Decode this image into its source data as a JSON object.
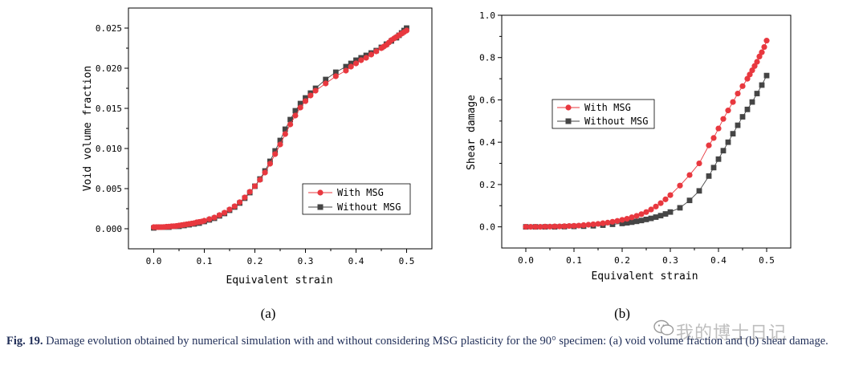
{
  "caption": {
    "label": "Fig. 19.",
    "text": " Damage evolution obtained by numerical simulation with and without considering MSG plasticity for the 90° specimen: (a) void volume fraction and (b) shear damage."
  },
  "watermark": {
    "text": "我的博士日记",
    "icon": "wechat-icon"
  },
  "colors": {
    "with_msg": "#e8383f",
    "without_msg": "#454545",
    "axis": "#000000"
  },
  "chart_data": [
    {
      "type": "line",
      "panel_label": "(a)",
      "xlabel": "Equivalent strain",
      "ylabel": "Void volume fraction",
      "xlim": [
        -0.05,
        0.55
      ],
      "ylim": [
        -0.0025,
        0.0275
      ],
      "xticks": [
        "0.0",
        "0.1",
        "0.2",
        "0.3",
        "0.4",
        "0.5"
      ],
      "yticks": [
        "0.000",
        "0.005",
        "0.010",
        "0.015",
        "0.020",
        "0.025"
      ],
      "legend": "center-right",
      "series": [
        {
          "name": "With MSG",
          "marker": "circle",
          "x": [
            0.0,
            0.005,
            0.01,
            0.015,
            0.02,
            0.025,
            0.03,
            0.035,
            0.04,
            0.045,
            0.05,
            0.055,
            0.06,
            0.065,
            0.07,
            0.075,
            0.08,
            0.085,
            0.09,
            0.095,
            0.1,
            0.11,
            0.12,
            0.13,
            0.14,
            0.15,
            0.16,
            0.17,
            0.18,
            0.19,
            0.2,
            0.21,
            0.22,
            0.23,
            0.24,
            0.25,
            0.26,
            0.27,
            0.28,
            0.29,
            0.3,
            0.31,
            0.32,
            0.34,
            0.36,
            0.38,
            0.39,
            0.4,
            0.41,
            0.42,
            0.43,
            0.44,
            0.45,
            0.455,
            0.46,
            0.465,
            0.47,
            0.475,
            0.48,
            0.485,
            0.49,
            0.495,
            0.5
          ],
          "y": [
            0.0002,
            0.0002,
            0.0002,
            0.0002,
            0.00022,
            0.00025,
            0.00027,
            0.0003,
            0.00032,
            0.00035,
            0.0004,
            0.00045,
            0.0005,
            0.00055,
            0.0006,
            0.00065,
            0.0007,
            0.0008,
            0.00085,
            0.0009,
            0.001,
            0.0012,
            0.0014,
            0.0017,
            0.002,
            0.0024,
            0.0028,
            0.0033,
            0.0039,
            0.0046,
            0.0053,
            0.0061,
            0.007,
            0.0081,
            0.0093,
            0.0105,
            0.0118,
            0.013,
            0.0141,
            0.0151,
            0.0159,
            0.0166,
            0.0172,
            0.0181,
            0.019,
            0.0197,
            0.0202,
            0.0206,
            0.021,
            0.0213,
            0.0217,
            0.0221,
            0.0225,
            0.0227,
            0.0229,
            0.0232,
            0.0235,
            0.0237,
            0.0239,
            0.0241,
            0.0243,
            0.0245,
            0.0247
          ]
        },
        {
          "name": "Without MSG",
          "marker": "square",
          "x": [
            0.0,
            0.01,
            0.02,
            0.03,
            0.04,
            0.05,
            0.06,
            0.07,
            0.08,
            0.09,
            0.1,
            0.11,
            0.12,
            0.13,
            0.14,
            0.15,
            0.16,
            0.17,
            0.18,
            0.19,
            0.2,
            0.21,
            0.22,
            0.23,
            0.24,
            0.25,
            0.26,
            0.27,
            0.28,
            0.29,
            0.3,
            0.31,
            0.32,
            0.34,
            0.36,
            0.38,
            0.39,
            0.4,
            0.41,
            0.42,
            0.43,
            0.44,
            0.45,
            0.46,
            0.47,
            0.48,
            0.485,
            0.49,
            0.495,
            0.5
          ],
          "y": [
            0.0001,
            0.0002,
            0.0002,
            0.0002,
            0.0003,
            0.0003,
            0.0004,
            0.0005,
            0.0006,
            0.0007,
            0.0009,
            0.0011,
            0.0013,
            0.0016,
            0.0019,
            0.0023,
            0.0027,
            0.0032,
            0.0038,
            0.0045,
            0.0053,
            0.0062,
            0.0072,
            0.0084,
            0.0097,
            0.011,
            0.0124,
            0.0136,
            0.0147,
            0.0156,
            0.0163,
            0.0169,
            0.0175,
            0.0186,
            0.0195,
            0.0202,
            0.0206,
            0.021,
            0.0213,
            0.0216,
            0.0219,
            0.0222,
            0.0226,
            0.023,
            0.0234,
            0.0238,
            0.0241,
            0.0244,
            0.0247,
            0.025
          ]
        }
      ]
    },
    {
      "type": "line",
      "panel_label": "(b)",
      "xlabel": "Equivalent strain",
      "ylabel": "Shear damage",
      "xlim": [
        -0.05,
        0.55
      ],
      "ylim": [
        -0.1,
        1.0
      ],
      "xticks": [
        "0.0",
        "0.1",
        "0.2",
        "0.3",
        "0.4",
        "0.5"
      ],
      "yticks": [
        "0.0",
        "0.2",
        "0.4",
        "0.6",
        "0.8",
        "1.0"
      ],
      "legend": "center-left",
      "series": [
        {
          "name": "With MSG",
          "marker": "circle",
          "x": [
            0.0,
            0.01,
            0.02,
            0.03,
            0.04,
            0.05,
            0.06,
            0.07,
            0.08,
            0.09,
            0.1,
            0.11,
            0.12,
            0.13,
            0.14,
            0.15,
            0.16,
            0.17,
            0.18,
            0.19,
            0.2,
            0.21,
            0.22,
            0.23,
            0.24,
            0.25,
            0.26,
            0.27,
            0.28,
            0.29,
            0.3,
            0.32,
            0.34,
            0.36,
            0.38,
            0.39,
            0.4,
            0.41,
            0.42,
            0.43,
            0.44,
            0.45,
            0.46,
            0.465,
            0.47,
            0.475,
            0.48,
            0.485,
            0.49,
            0.495,
            0.5
          ],
          "y": [
            0.0,
            0.0,
            0.0,
            0.0,
            0.001,
            0.001,
            0.002,
            0.002,
            0.003,
            0.004,
            0.005,
            0.006,
            0.008,
            0.01,
            0.012,
            0.014,
            0.017,
            0.02,
            0.024,
            0.028,
            0.033,
            0.038,
            0.045,
            0.052,
            0.06,
            0.07,
            0.082,
            0.096,
            0.112,
            0.13,
            0.15,
            0.195,
            0.245,
            0.3,
            0.385,
            0.42,
            0.465,
            0.51,
            0.55,
            0.59,
            0.63,
            0.665,
            0.7,
            0.72,
            0.74,
            0.76,
            0.78,
            0.805,
            0.825,
            0.85,
            0.88
          ]
        },
        {
          "name": "Without MSG",
          "marker": "square",
          "x": [
            0.0,
            0.02,
            0.04,
            0.06,
            0.08,
            0.1,
            0.12,
            0.14,
            0.16,
            0.18,
            0.2,
            0.21,
            0.22,
            0.23,
            0.24,
            0.25,
            0.26,
            0.27,
            0.28,
            0.29,
            0.3,
            0.32,
            0.34,
            0.36,
            0.38,
            0.39,
            0.4,
            0.41,
            0.42,
            0.43,
            0.44,
            0.45,
            0.46,
            0.47,
            0.48,
            0.49,
            0.5
          ],
          "y": [
            0.0,
            0.0,
            0.0,
            0.0,
            0.001,
            0.002,
            0.003,
            0.005,
            0.008,
            0.012,
            0.016,
            0.019,
            0.022,
            0.026,
            0.03,
            0.035,
            0.04,
            0.046,
            0.053,
            0.061,
            0.07,
            0.09,
            0.125,
            0.17,
            0.24,
            0.28,
            0.32,
            0.36,
            0.4,
            0.44,
            0.48,
            0.52,
            0.555,
            0.59,
            0.63,
            0.67,
            0.715
          ]
        }
      ]
    }
  ]
}
